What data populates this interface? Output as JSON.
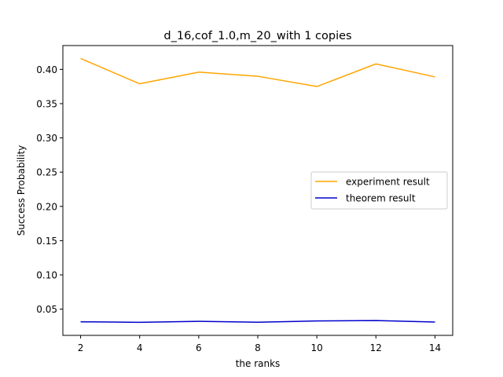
{
  "chart_data": {
    "type": "line",
    "title": "d_16,cof_1.0,m_20_with 1 copies",
    "xlabel": "the ranks",
    "ylabel": "Success Probability",
    "x": [
      2,
      4,
      6,
      8,
      10,
      12,
      14
    ],
    "xticks": [
      2,
      4,
      6,
      8,
      10,
      12,
      14
    ],
    "yticks": [
      0.05,
      0.1,
      0.15,
      0.2,
      0.25,
      0.3,
      0.35,
      0.4
    ],
    "ytick_labels": [
      "0.05",
      "0.10",
      "0.15",
      "0.20",
      "0.25",
      "0.30",
      "0.35",
      "0.40"
    ],
    "xlim": [
      1.4,
      14.6
    ],
    "ylim": [
      0.0117,
      0.4348
    ],
    "grid": false,
    "legend_position": "center-right",
    "series": [
      {
        "name": "experiment result",
        "color": "#ffa500",
        "values": [
          0.416,
          0.379,
          0.396,
          0.39,
          0.375,
          0.408,
          0.389
        ]
      },
      {
        "name": "theorem result",
        "color": "#0000cd",
        "values": [
          0.0315,
          0.0308,
          0.0322,
          0.0309,
          0.0328,
          0.0333,
          0.0312
        ]
      }
    ]
  }
}
